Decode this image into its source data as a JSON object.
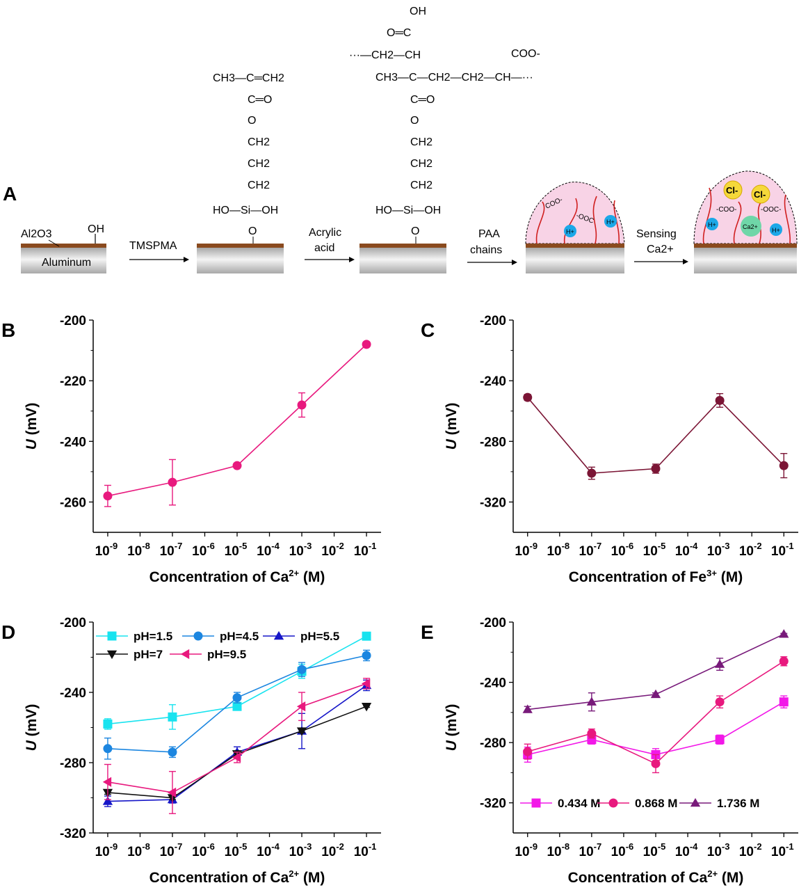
{
  "panel_letters": {
    "A": "A",
    "B": "B",
    "C": "C",
    "D": "D",
    "E": "E"
  },
  "scheme": {
    "substrate_label": "Aluminum",
    "oxide_label": "Al2O3",
    "oh_label": "OH",
    "steps": [
      {
        "line1": "TMSPMA",
        "line2": ""
      },
      {
        "line1": "Acrylic",
        "line2": "acid"
      },
      {
        "line1": "PAA",
        "line2": "chains"
      },
      {
        "line1": "Sensing",
        "line2": "Ca2+"
      }
    ],
    "molecule1": [
      "CH3—C═CH2",
      "C═O",
      "O",
      "CH2",
      "CH2",
      "CH2",
      "HO—Si—OH",
      "O"
    ],
    "molecule2": [
      "OH",
      "O═C",
      "···—CH2—CH",
      "COO-",
      "CH3—C—CH2—CH2—CH—···",
      "C═O",
      "O",
      "CH2",
      "CH2",
      "CH2",
      "HO—Si—OH",
      "O"
    ],
    "drop1": {
      "coo1": "COO-",
      "coo2": "-OOC",
      "h1": "H+",
      "h2": "H+"
    },
    "drop2": {
      "cl1": "Cl-",
      "cl2": "Cl-",
      "coo1": "-COO-",
      "coo2": "-OOC-",
      "ca": "Ca2+",
      "h1": "H+",
      "h2": "H+"
    }
  },
  "chart_data": [
    {
      "panel": "B",
      "type": "line",
      "xlabel": "Concentration of Ca2+ (M)",
      "ylabel": "U (mV)",
      "x_ticks": [
        -9,
        -8,
        -7,
        -6,
        -5,
        -4,
        -3,
        -2,
        -1
      ],
      "x_tick_format": "10^n",
      "ylim": [
        -270,
        -200
      ],
      "y_ticks": [
        -200,
        -220,
        -240,
        -260
      ],
      "series": [
        {
          "color": "#e8197e",
          "marker": "circle",
          "x": [
            -9,
            -7,
            -5,
            -3,
            -1
          ],
          "y": [
            -258,
            -253.5,
            -248,
            -228,
            -208
          ],
          "err": [
            3.5,
            7.5,
            0.8,
            4,
            0.5
          ]
        }
      ]
    },
    {
      "panel": "C",
      "type": "line",
      "xlabel": "Concentration of Fe3+ (M)",
      "ylabel": "U (mV)",
      "x_ticks": [
        -9,
        -8,
        -7,
        -6,
        -5,
        -4,
        -3,
        -2,
        -1
      ],
      "x_tick_format": "10^n",
      "ylim": [
        -340,
        -200
      ],
      "y_ticks": [
        -200,
        -240,
        -280,
        -320
      ],
      "series": [
        {
          "color": "#7b1535",
          "marker": "circle",
          "x": [
            -9,
            -7,
            -5,
            -3,
            -1
          ],
          "y": [
            -251,
            -301,
            -298,
            -253,
            -296
          ],
          "err": [
            2,
            4,
            3,
            4.5,
            8
          ]
        }
      ]
    },
    {
      "panel": "D",
      "type": "line",
      "xlabel": "Concentration of Ca2+ (M)",
      "ylabel": "U (mV)",
      "x_ticks": [
        -9,
        -8,
        -7,
        -6,
        -5,
        -4,
        -3,
        -2,
        -1
      ],
      "x_tick_format": "10^n",
      "ylim": [
        -320,
        -200
      ],
      "y_ticks": [
        -200,
        -240,
        -280,
        -320
      ],
      "series": [
        {
          "name": "pH=1.5",
          "color": "#18e3ef",
          "marker": "square",
          "x": [
            -9,
            -7,
            -5,
            -3,
            -1
          ],
          "y": [
            -258,
            -254,
            -248,
            -228,
            -208
          ],
          "err": [
            3,
            7,
            1,
            4,
            0.5
          ]
        },
        {
          "name": "pH=4.5",
          "color": "#1c86e0",
          "marker": "circle",
          "x": [
            -9,
            -7,
            -5,
            -3,
            -1
          ],
          "y": [
            -272,
            -274,
            -243,
            -227,
            -219
          ],
          "err": [
            6,
            3,
            3,
            4,
            3
          ]
        },
        {
          "name": "pH=5.5",
          "color": "#1616c8",
          "marker": "triangle-up",
          "x": [
            -9,
            -7,
            -5,
            -3,
            -1
          ],
          "y": [
            -302,
            -301,
            -274,
            -262,
            -236
          ],
          "err": [
            3,
            2,
            3,
            10,
            3
          ]
        },
        {
          "name": "pH=7",
          "color": "#111111",
          "marker": "triangle-down",
          "x": [
            -9,
            -7,
            -5,
            -3,
            -1
          ],
          "y": [
            -297,
            -300,
            -275,
            -262,
            -248
          ],
          "err": [
            1,
            1,
            1,
            1,
            0.5
          ]
        },
        {
          "name": "pH=9.5",
          "color": "#e8197e",
          "marker": "triangle-left",
          "x": [
            -9,
            -7,
            -5,
            -3,
            -1
          ],
          "y": [
            -291,
            -297,
            -277,
            -248,
            -235
          ],
          "err": [
            10,
            12,
            3,
            8,
            3
          ]
        }
      ],
      "legend_position": "top-left"
    },
    {
      "panel": "E",
      "type": "line",
      "xlabel": "Concentration of Ca2+ (M)",
      "ylabel": "U (mV)",
      "x_ticks": [
        -9,
        -8,
        -7,
        -6,
        -5,
        -4,
        -3,
        -2,
        -1
      ],
      "x_tick_format": "10^n",
      "ylim": [
        -340,
        -200
      ],
      "y_ticks": [
        -200,
        -240,
        -280,
        -320
      ],
      "series": [
        {
          "name": "0.434 M",
          "color": "#f218e8",
          "marker": "square",
          "x": [
            -9,
            -7,
            -5,
            -3,
            -1
          ],
          "y": [
            -288,
            -278,
            -288,
            -278,
            -253
          ],
          "err": [
            5,
            3,
            4,
            3,
            4
          ]
        },
        {
          "name": "0.868 M",
          "color": "#e8197e",
          "marker": "circle",
          "x": [
            -9,
            -7,
            -5,
            -3,
            -1
          ],
          "y": [
            -286,
            -274,
            -294,
            -253,
            -226
          ],
          "err": [
            5,
            3,
            6,
            4,
            3
          ]
        },
        {
          "name": "1.736 M",
          "color": "#781a7a",
          "marker": "triangle-up",
          "x": [
            -9,
            -7,
            -5,
            -3,
            -1
          ],
          "y": [
            -258,
            -253,
            -248,
            -228,
            -208
          ],
          "err": [
            2,
            6,
            1,
            4,
            0.5
          ]
        }
      ],
      "legend_position": "bottom"
    }
  ]
}
